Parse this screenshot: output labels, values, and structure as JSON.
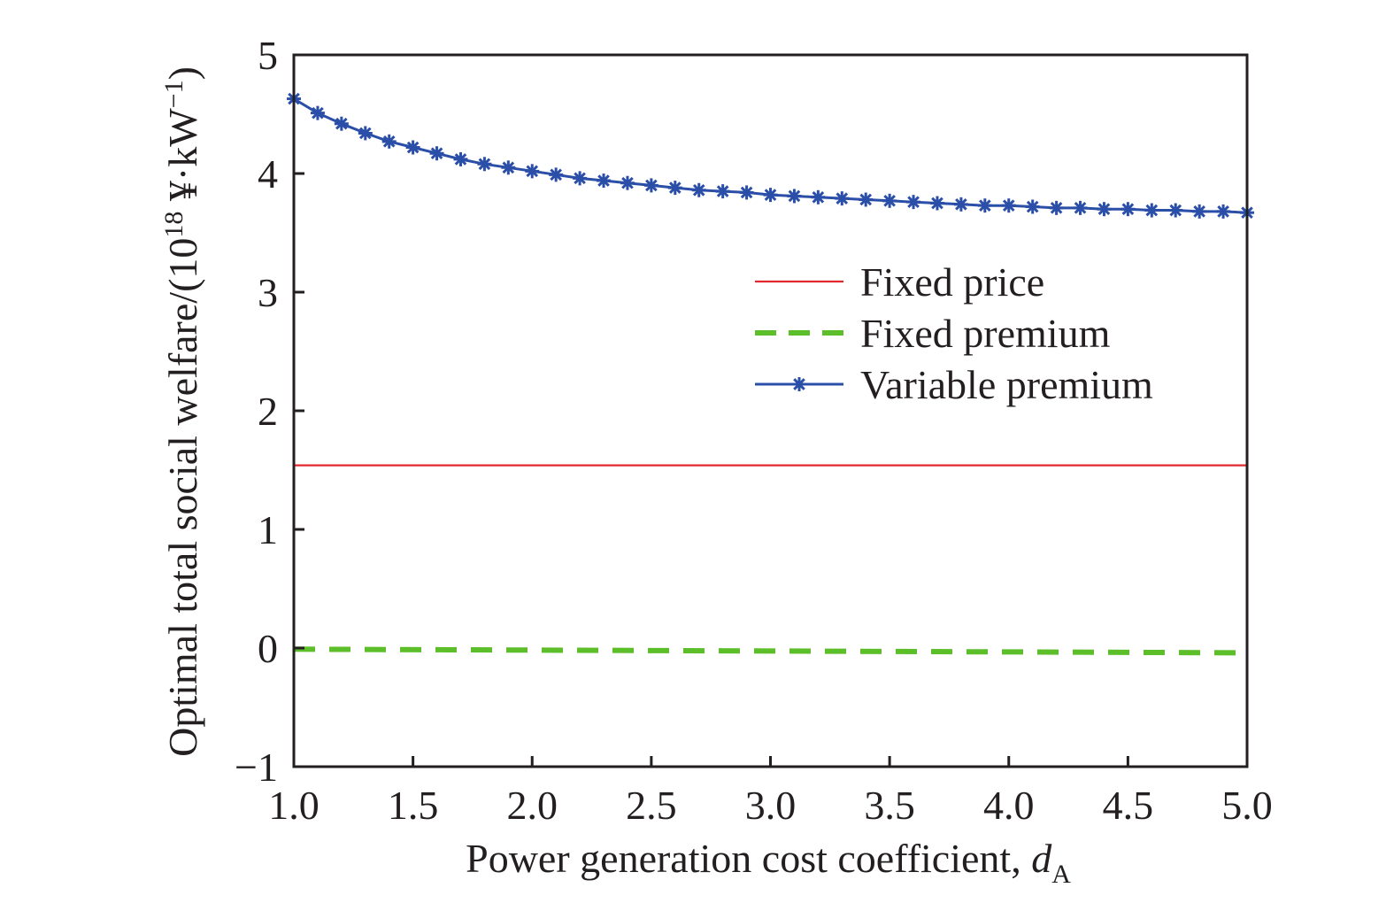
{
  "chart_data": {
    "type": "line",
    "title": "",
    "xlabel": {
      "main": "Power generation cost coefficient, ",
      "var": "d",
      "sub": "A"
    },
    "ylabel": {
      "pre": "Optimal total social welfare/(10",
      "sup": "18",
      "post": " ¥·kW",
      "sup2": "−1",
      "end": ")"
    },
    "xlim": [
      1.0,
      5.0
    ],
    "ylim": [
      -1,
      5
    ],
    "xticks": [
      1.0,
      1.5,
      2.0,
      2.5,
      3.0,
      3.5,
      4.0,
      4.5,
      5.0
    ],
    "xtick_labels": [
      "1.0",
      "1.5",
      "2.0",
      "2.5",
      "3.0",
      "3.5",
      "4.0",
      "4.5",
      "5.0"
    ],
    "yticks": [
      -1,
      0,
      1,
      2,
      3,
      4,
      5
    ],
    "ytick_labels": [
      "−1",
      "0",
      "1",
      "2",
      "3",
      "4",
      "5"
    ],
    "grid": false,
    "legend_position": "center-right",
    "series": [
      {
        "name": "Fixed price",
        "color": "#e0282e",
        "style": "solid",
        "marker": "none",
        "x": [
          1.0,
          5.0
        ],
        "y": [
          1.54,
          1.54
        ]
      },
      {
        "name": "Fixed premium",
        "color": "#5cbf2a",
        "style": "dashed",
        "marker": "none",
        "x": [
          1.0,
          5.0
        ],
        "y": [
          -0.01,
          -0.04
        ]
      },
      {
        "name": "Variable premium",
        "color": "#2b4fa8",
        "style": "solid",
        "marker": "asterisk",
        "x": [
          1.0,
          1.1,
          1.2,
          1.3,
          1.4,
          1.5,
          1.6,
          1.7,
          1.8,
          1.9,
          2.0,
          2.1,
          2.2,
          2.3,
          2.4,
          2.5,
          2.6,
          2.7,
          2.8,
          2.9,
          3.0,
          3.1,
          3.2,
          3.3,
          3.4,
          3.5,
          3.6,
          3.7,
          3.8,
          3.9,
          4.0,
          4.1,
          4.2,
          4.3,
          4.4,
          4.5,
          4.6,
          4.7,
          4.8,
          4.9,
          5.0
        ],
        "y": [
          4.63,
          4.51,
          4.42,
          4.34,
          4.27,
          4.22,
          4.17,
          4.12,
          4.08,
          4.05,
          4.02,
          3.99,
          3.96,
          3.94,
          3.92,
          3.9,
          3.88,
          3.86,
          3.85,
          3.84,
          3.82,
          3.81,
          3.8,
          3.79,
          3.78,
          3.77,
          3.76,
          3.75,
          3.74,
          3.73,
          3.73,
          3.72,
          3.71,
          3.71,
          3.7,
          3.7,
          3.69,
          3.69,
          3.68,
          3.68,
          3.67
        ]
      }
    ]
  }
}
